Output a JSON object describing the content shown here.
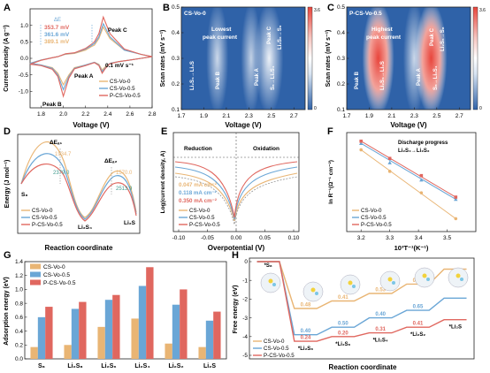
{
  "figure": {
    "panel_labels": [
      "A",
      "B",
      "C",
      "D",
      "E",
      "F",
      "G",
      "H"
    ]
  },
  "colors": {
    "cs_vo_0": "#e9b574",
    "cs_vo_05": "#6aa6d6",
    "p_cs_vo_05": "#e0675f",
    "heat_low": "#2f62a8",
    "heat_high": "#e8453c"
  },
  "chart_data": [
    {
      "id": "A",
      "type": "line",
      "xlabel": "Voltage (V)",
      "ylabel": "Current density (A g⁻¹)",
      "xlim": [
        1.7,
        2.8
      ],
      "ylim": [
        -1.5,
        1.5
      ],
      "xticks": [
        1.8,
        2.0,
        2.2,
        2.4,
        2.6,
        2.8
      ],
      "yticks": [
        -1.0,
        -0.5,
        0.0,
        0.5,
        1.0
      ],
      "annotations": {
        "delta_e": "ΔE",
        "e1": "353.7 mV",
        "e2": "361.6 mV",
        "e3": "389.1 mV",
        "peak_a": "Peak A",
        "peak_b": "Peak B",
        "peak_c": "Peak C",
        "rate": "0.1 mV s⁻¹"
      },
      "series": [
        {
          "name": "CS-Vo-0",
          "x": [
            1.7,
            1.8,
            1.9,
            1.95,
            2.0,
            2.05,
            2.1,
            2.2,
            2.28,
            2.32,
            2.35,
            2.38,
            2.42,
            2.5,
            2.6,
            2.7,
            2.8,
            2.7,
            2.55,
            2.42,
            2.36,
            2.32,
            2.28,
            2.25,
            2.2,
            2.1,
            2.02,
            1.99,
            1.95,
            1.9,
            1.8,
            1.7
          ],
          "y": [
            -0.15,
            -0.2,
            -0.28,
            -0.45,
            -0.8,
            -0.5,
            -0.28,
            -0.2,
            -0.12,
            -0.18,
            -0.35,
            -0.25,
            -0.15,
            -0.1,
            -0.05,
            0.0,
            0.05,
            0.12,
            0.25,
            0.6,
            0.95,
            0.6,
            0.4,
            0.35,
            0.25,
            0.15,
            0.12,
            0.1,
            0.05,
            0.02,
            -0.05,
            -0.15
          ]
        },
        {
          "name": "CS-Vo-0.5",
          "x": [
            1.7,
            1.8,
            1.9,
            1.95,
            2.0,
            2.05,
            2.1,
            2.2,
            2.28,
            2.32,
            2.35,
            2.38,
            2.42,
            2.5,
            2.6,
            2.7,
            2.8,
            2.7,
            2.55,
            2.42,
            2.36,
            2.32,
            2.28,
            2.25,
            2.2,
            2.1,
            2.02,
            1.99,
            1.95,
            1.9,
            1.8,
            1.7
          ],
          "y": [
            -0.15,
            -0.2,
            -0.3,
            -0.5,
            -0.95,
            -0.55,
            -0.3,
            -0.2,
            -0.12,
            -0.2,
            -0.4,
            -0.28,
            -0.15,
            -0.1,
            -0.05,
            0.0,
            0.05,
            0.12,
            0.25,
            0.65,
            1.05,
            0.65,
            0.45,
            0.38,
            0.28,
            0.16,
            0.13,
            0.1,
            0.05,
            0.02,
            -0.05,
            -0.15
          ]
        },
        {
          "name": "P-CS-Vo-0.5",
          "x": [
            1.7,
            1.8,
            1.9,
            1.95,
            2.0,
            2.05,
            2.1,
            2.2,
            2.28,
            2.32,
            2.35,
            2.38,
            2.42,
            2.5,
            2.6,
            2.7,
            2.8,
            2.7,
            2.55,
            2.42,
            2.36,
            2.32,
            2.28,
            2.25,
            2.2,
            2.1,
            2.02,
            1.99,
            1.95,
            1.9,
            1.8,
            1.7
          ],
          "y": [
            -0.18,
            -0.22,
            -0.33,
            -0.55,
            -1.15,
            -0.6,
            -0.32,
            -0.22,
            -0.13,
            -0.22,
            -0.45,
            -0.3,
            -0.16,
            -0.1,
            -0.05,
            0.0,
            0.05,
            0.12,
            0.28,
            0.75,
            1.25,
            0.75,
            0.5,
            0.42,
            0.3,
            0.17,
            0.14,
            0.1,
            0.05,
            0.02,
            -0.06,
            -0.18
          ]
        }
      ]
    },
    {
      "id": "B",
      "type": "heatmap",
      "title": "CS-Vo-0",
      "xlabel": "Voltage (V)",
      "ylabel": "Scan rates (mV s⁻¹)",
      "xlim": [
        1.7,
        2.8
      ],
      "ylim": [
        0.1,
        0.5
      ],
      "xticks": [
        1.7,
        1.9,
        2.1,
        2.3,
        2.5,
        2.7
      ],
      "yticks": [
        0.1,
        0.2,
        0.3,
        0.4,
        0.5
      ],
      "colorbar": {
        "min": 0,
        "max": 3.6
      },
      "labels": {
        "note_line1": "Lowest",
        "note_line2": "peak current",
        "peak_c": "Peak C",
        "reac_c": "Li₂S₆→S₈",
        "reac_b": "Li₂S₄→Li₂S",
        "peak_b": "Peak B",
        "peak_a": "Peak A",
        "reac_a": "S₈→Li₂S₄"
      },
      "hotspots": [
        {
          "x": 2.02,
          "y_from": 0.1,
          "y_to": 0.5,
          "intensity": 0.45
        },
        {
          "x": 2.32,
          "y_from": 0.1,
          "y_to": 0.5,
          "intensity": 0.35
        },
        {
          "x": 2.48,
          "y_from": 0.1,
          "y_to": 0.5,
          "intensity": 0.8
        }
      ]
    },
    {
      "id": "C",
      "type": "heatmap",
      "title": "P-CS-Vo-0.5",
      "xlabel": "Voltage (V)",
      "ylabel": "Scan rates (mV s⁻¹)",
      "xlim": [
        1.7,
        2.8
      ],
      "ylim": [
        0.1,
        0.5
      ],
      "xticks": [
        1.7,
        1.9,
        2.1,
        2.3,
        2.5,
        2.7
      ],
      "yticks": [
        0.1,
        0.2,
        0.3,
        0.4,
        0.5
      ],
      "colorbar": {
        "min": 0,
        "max": 3.6
      },
      "labels": {
        "note_line1": "Highest",
        "note_line2": "peak current",
        "peak_c": "Peak C",
        "reac_c": "Li₂S₆→S₈",
        "reac_b": "Li₂S₄→Li₂S",
        "peak_b": "Peak B",
        "peak_a": "Peak A",
        "reac_a": "S₈→Li₂S₄"
      },
      "hotspots": [
        {
          "x": 1.98,
          "y_from": 0.1,
          "y_to": 0.5,
          "intensity": 1.0
        },
        {
          "x": 2.3,
          "y_from": 0.1,
          "y_to": 0.5,
          "intensity": 0.45
        },
        {
          "x": 2.45,
          "y_from": 0.1,
          "y_to": 0.5,
          "intensity": 1.0
        }
      ]
    },
    {
      "id": "D",
      "type": "line",
      "xlabel": "Reaction coordinate",
      "ylabel": "Energy (J mol⁻¹)",
      "labels": {
        "s8": "S₈",
        "li2s4": "Li₂S₄",
        "li2s": "Li₂S",
        "de1": "ΔEₐ₁",
        "de2": "ΔEₐ₂"
      },
      "barriers_1": [
        {
          "series": "CS-Vo-0",
          "value": 1934.7
        },
        {
          "series": "CS-Vo-0.5",
          "value": 2379.0
        }
      ],
      "barriers_2": [
        {
          "series": "CS-Vo-0",
          "value": 1570.0
        },
        {
          "series": "CS-Vo-0.5",
          "value": 2513.9
        }
      ],
      "series": [
        {
          "name": "CS-Vo-0"
        },
        {
          "name": "CS-Vo-0.5"
        },
        {
          "name": "P-CS-Vo-0.5"
        }
      ]
    },
    {
      "id": "E",
      "type": "line",
      "xlabel": "Overpotential (V)",
      "ylabel": "Log(current density, A)",
      "xlim": [
        -0.1,
        0.1
      ],
      "xticks": [
        -0.1,
        -0.05,
        0.0,
        0.05,
        0.1
      ],
      "regions": [
        "Reduction",
        "Oxidation"
      ],
      "exchange_current": [
        {
          "series": "CS-Vo-0",
          "label": "0.047 mA cm⁻²"
        },
        {
          "series": "CS-Vo-0.5",
          "label": "0.118 mA cm⁻²"
        },
        {
          "series": "P-CS-Vo-0.5",
          "label": "0.350 mA cm⁻²"
        }
      ],
      "series": [
        {
          "name": "CS-Vo-0"
        },
        {
          "name": "CS-Vo-0.5"
        },
        {
          "name": "P-CS-Vo-0.5"
        }
      ]
    },
    {
      "id": "F",
      "type": "scatter",
      "xlabel": "10³T⁻¹(K⁻¹)",
      "ylabel": "ln R⁻¹(Ω⁻¹ cm⁻²)",
      "xlim": [
        3.15,
        3.6
      ],
      "xticks": [
        3.2,
        3.3,
        3.4,
        3.5
      ],
      "annotation_line1": "Discharge progress",
      "annotation_line2": "Li₂S₄→Li₂S₂",
      "series": [
        {
          "name": "CS-Vo-0",
          "x": [
            3.2,
            3.3,
            3.41,
            3.53
          ],
          "y": [
            -2.9,
            -3.4,
            -3.9,
            -4.5
          ]
        },
        {
          "name": "CS-Vo-0.5",
          "x": [
            3.2,
            3.3,
            3.41,
            3.53
          ],
          "y": [
            -2.75,
            -3.2,
            -3.6,
            -4.05
          ]
        },
        {
          "name": "P-CS-Vo-0.5",
          "x": [
            3.2,
            3.3,
            3.41,
            3.53
          ],
          "y": [
            -2.7,
            -3.1,
            -3.5,
            -4.0
          ]
        }
      ]
    },
    {
      "id": "G",
      "type": "bar",
      "xlabel": "",
      "ylabel": "Adsorption energy (eV)",
      "ylim": [
        0,
        1.4
      ],
      "yticks": [
        0.0,
        0.2,
        0.4,
        0.6,
        0.8,
        1.0,
        1.2,
        1.4
      ],
      "categories": [
        "S₈",
        "Li₂S₈",
        "Li₂S₆",
        "Li₂S₄",
        "Li₂S₂",
        "Li₂S"
      ],
      "series": [
        {
          "name": "CS-Vo-0",
          "values": [
            0.17,
            0.2,
            0.46,
            0.58,
            0.22,
            0.17
          ]
        },
        {
          "name": "CS-Vo-0.5",
          "values": [
            0.6,
            0.72,
            0.85,
            1.05,
            0.78,
            0.55
          ]
        },
        {
          "name": "P-CS-Vo-0.5",
          "values": [
            0.75,
            0.82,
            0.92,
            1.32,
            1.0,
            0.68
          ]
        }
      ]
    },
    {
      "id": "H",
      "type": "line",
      "xlabel": "Reaction coordinate",
      "ylabel": "Free energy (eV)",
      "ylim": [
        -5,
        0
      ],
      "yticks": [
        -5,
        -4,
        -3,
        -2,
        -1,
        0
      ],
      "steps": [
        "*S₈",
        "*Li₂S₈",
        "*Li₂S₆",
        "*Li₂S₄",
        "*Li₂S₂",
        "*Li₂S"
      ],
      "series": [
        {
          "name": "CS-Vo-0",
          "values": [
            0.0,
            -2.5,
            -2.1,
            -1.7,
            -1.2,
            -0.4
          ],
          "step_labels": [
            "",
            "0.48",
            "0.41",
            "0.53",
            "0.83"
          ]
        },
        {
          "name": "CS-Vo-0.5",
          "values": [
            0.0,
            -3.9,
            -3.5,
            -3.0,
            -2.6,
            -1.95
          ],
          "step_labels": [
            "",
            "0.40",
            "0.50",
            "0.40",
            "0.65"
          ]
        },
        {
          "name": "P-CS-Vo-0.5",
          "values": [
            0.0,
            -4.25,
            -4.0,
            -3.8,
            -3.5,
            -3.1
          ],
          "step_labels": [
            "",
            "0.24",
            "0.20",
            "0.31",
            "0.41"
          ]
        }
      ]
    }
  ]
}
